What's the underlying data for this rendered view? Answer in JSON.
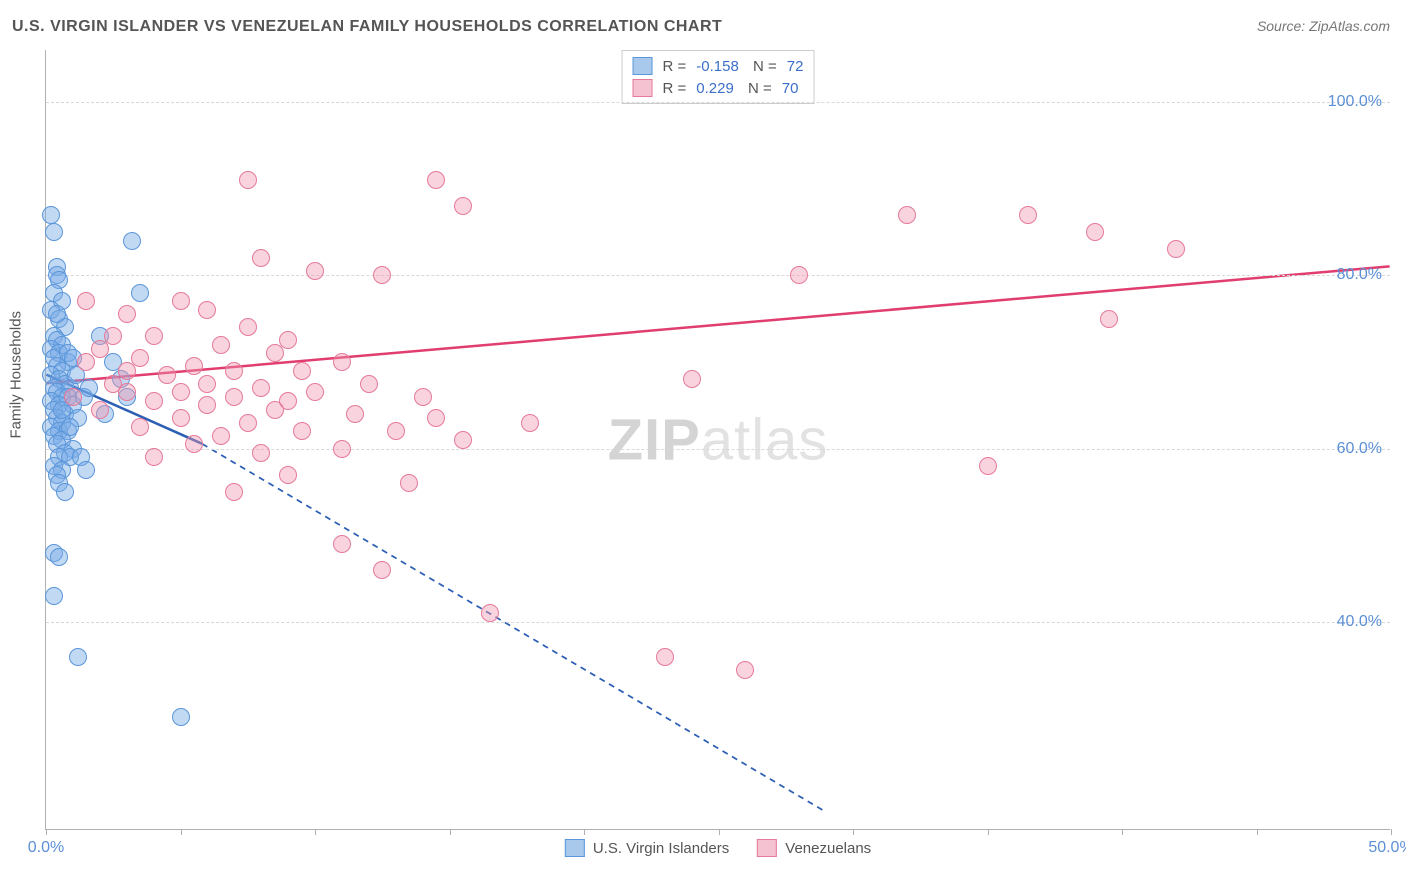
{
  "title": "U.S. VIRGIN ISLANDER VS VENEZUELAN FAMILY HOUSEHOLDS CORRELATION CHART",
  "source_label": "Source: ZipAtlas.com",
  "y_axis_title": "Family Households",
  "watermark": {
    "zip": "ZIP",
    "atlas": "atlas"
  },
  "chart": {
    "type": "scatter",
    "background_color": "#ffffff",
    "grid_color": "#d8d8d8",
    "axis_color": "#b0b0b0",
    "tick_label_color": "#5b8fd6",
    "xlim": [
      0,
      50
    ],
    "ylim": [
      16,
      106
    ],
    "x_ticks": [
      0,
      5,
      10,
      15,
      20,
      25,
      30,
      35,
      40,
      45,
      50
    ],
    "x_tick_labels": {
      "0": "0.0%",
      "50": "50.0%"
    },
    "y_gridlines": [
      40,
      60,
      80,
      100
    ],
    "y_tick_labels": {
      "40": "40.0%",
      "60": "60.0%",
      "80": "80.0%",
      "100": "100.0%"
    },
    "marker_radius": 9,
    "series": [
      {
        "name": "U.S. Virgin Islanders",
        "fill_color": "rgba(120,170,230,0.45)",
        "stroke_color": "#5a96d9",
        "swatch_fill": "#a8c9ec",
        "swatch_border": "#5a96d9",
        "R": "-0.158",
        "N": "72",
        "regression": {
          "solid": {
            "x1": 0,
            "y1": 68.5,
            "x2": 5.8,
            "y2": 60.5
          },
          "dashed": {
            "x1": 5.8,
            "y1": 60.5,
            "x2": 29,
            "y2": 18
          },
          "line_color": "#2c5fb3",
          "line_width": 2.5,
          "dash": "6,5"
        },
        "points": [
          [
            0.2,
            87
          ],
          [
            0.3,
            85
          ],
          [
            0.4,
            81
          ],
          [
            0.4,
            80
          ],
          [
            0.5,
            79.5
          ],
          [
            0.3,
            78
          ],
          [
            0.6,
            77
          ],
          [
            0.2,
            76
          ],
          [
            0.5,
            75
          ],
          [
            0.7,
            74
          ],
          [
            0.3,
            73
          ],
          [
            0.4,
            72.5
          ],
          [
            0.6,
            72
          ],
          [
            0.2,
            71.5
          ],
          [
            0.5,
            71
          ],
          [
            0.3,
            70.5
          ],
          [
            0.8,
            70
          ],
          [
            0.4,
            69.5
          ],
          [
            0.6,
            69
          ],
          [
            0.2,
            68.5
          ],
          [
            0.5,
            68
          ],
          [
            0.7,
            67.5
          ],
          [
            0.3,
            67
          ],
          [
            0.9,
            67
          ],
          [
            0.4,
            66.5
          ],
          [
            0.6,
            66
          ],
          [
            0.8,
            66
          ],
          [
            0.2,
            65.5
          ],
          [
            0.5,
            65
          ],
          [
            1.0,
            65
          ],
          [
            0.3,
            64.5
          ],
          [
            0.7,
            64
          ],
          [
            0.4,
            63.5
          ],
          [
            1.2,
            63.5
          ],
          [
            0.6,
            63
          ],
          [
            0.2,
            62.5
          ],
          [
            0.5,
            62
          ],
          [
            0.8,
            62
          ],
          [
            0.3,
            61.5
          ],
          [
            0.6,
            61
          ],
          [
            0.4,
            60.5
          ],
          [
            1.0,
            60
          ],
          [
            0.7,
            59.5
          ],
          [
            0.5,
            59
          ],
          [
            0.9,
            59
          ],
          [
            1.3,
            59
          ],
          [
            0.3,
            58
          ],
          [
            0.6,
            57.5
          ],
          [
            1.5,
            57.5
          ],
          [
            0.4,
            57
          ],
          [
            0.5,
            56
          ],
          [
            0.7,
            55
          ],
          [
            3.2,
            84
          ],
          [
            3.5,
            78
          ],
          [
            2.0,
            73
          ],
          [
            2.5,
            70
          ],
          [
            2.8,
            68
          ],
          [
            3.0,
            66
          ],
          [
            2.2,
            64
          ],
          [
            0.3,
            48
          ],
          [
            0.5,
            47.5
          ],
          [
            0.3,
            43
          ],
          [
            1.2,
            36
          ],
          [
            5.0,
            29
          ],
          [
            0.4,
            75.5
          ],
          [
            0.8,
            71
          ],
          [
            1.1,
            68.5
          ],
          [
            1.4,
            66
          ],
          [
            0.6,
            64.5
          ],
          [
            0.9,
            62.5
          ],
          [
            1.0,
            70.5
          ],
          [
            1.6,
            67
          ]
        ]
      },
      {
        "name": "Venezuelans",
        "fill_color": "rgba(240,150,175,0.42)",
        "stroke_color": "#e57a9a",
        "swatch_fill": "#f5c2d1",
        "swatch_border": "#e57a9a",
        "R": "0.229",
        "N": "70",
        "regression": {
          "solid": {
            "x1": 0,
            "y1": 67.5,
            "x2": 50,
            "y2": 81
          },
          "line_color": "#e13d6e",
          "line_width": 2.5
        },
        "points": [
          [
            7.5,
            91
          ],
          [
            14.5,
            91
          ],
          [
            15.5,
            88
          ],
          [
            32,
            87
          ],
          [
            39,
            85
          ],
          [
            42,
            83
          ],
          [
            8,
            82
          ],
          [
            10,
            80.5
          ],
          [
            12.5,
            80
          ],
          [
            28,
            80
          ],
          [
            1.5,
            77
          ],
          [
            5,
            77
          ],
          [
            6,
            76
          ],
          [
            3,
            75.5
          ],
          [
            7.5,
            74
          ],
          [
            4,
            73
          ],
          [
            9,
            72.5
          ],
          [
            6.5,
            72
          ],
          [
            2,
            71.5
          ],
          [
            8.5,
            71
          ],
          [
            3.5,
            70.5
          ],
          [
            11,
            70
          ],
          [
            5.5,
            69.5
          ],
          [
            7,
            69
          ],
          [
            9.5,
            69
          ],
          [
            4.5,
            68.5
          ],
          [
            24,
            68
          ],
          [
            2.5,
            67.5
          ],
          [
            6,
            67.5
          ],
          [
            12,
            67.5
          ],
          [
            8,
            67
          ],
          [
            3,
            66.5
          ],
          [
            5,
            66.5
          ],
          [
            10,
            66.5
          ],
          [
            7,
            66
          ],
          [
            14,
            66
          ],
          [
            4,
            65.5
          ],
          [
            9,
            65.5
          ],
          [
            6,
            65
          ],
          [
            2,
            64.5
          ],
          [
            8.5,
            64.5
          ],
          [
            11.5,
            64
          ],
          [
            5,
            63.5
          ],
          [
            14.5,
            63.5
          ],
          [
            7.5,
            63
          ],
          [
            18,
            63
          ],
          [
            3.5,
            62.5
          ],
          [
            9.5,
            62
          ],
          [
            13,
            62
          ],
          [
            6.5,
            61.5
          ],
          [
            15.5,
            61
          ],
          [
            5.5,
            60.5
          ],
          [
            11,
            60
          ],
          [
            8,
            59.5
          ],
          [
            4,
            59
          ],
          [
            35,
            58
          ],
          [
            9,
            57
          ],
          [
            13.5,
            56
          ],
          [
            7,
            55
          ],
          [
            11,
            49
          ],
          [
            12.5,
            46
          ],
          [
            16.5,
            41
          ],
          [
            23,
            36
          ],
          [
            26,
            34.5
          ],
          [
            39.5,
            75
          ],
          [
            36.5,
            87
          ],
          [
            2.5,
            73
          ],
          [
            1.5,
            70
          ],
          [
            3,
            69
          ],
          [
            1,
            66
          ]
        ]
      }
    ]
  },
  "legend_bottom": [
    {
      "label": "U.S. Virgin Islanders",
      "swatch_fill": "#a8c9ec",
      "swatch_border": "#5a96d9"
    },
    {
      "label": "Venezuelans",
      "swatch_fill": "#f5c2d1",
      "swatch_border": "#e57a9a"
    }
  ]
}
